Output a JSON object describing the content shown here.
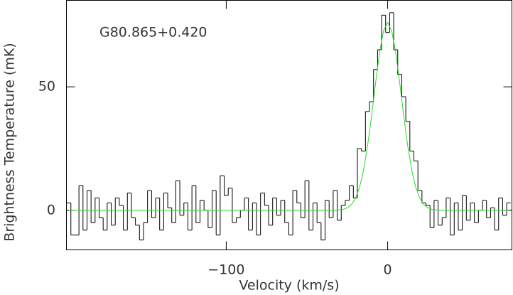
{
  "chart_data": {
    "type": "line",
    "annotation": "G80.865+0.420",
    "xlabel": "Velocity (km/s)",
    "ylabel": "Brightness Temperature (mK)",
    "xlim": [
      -199,
      77
    ],
    "ylim": [
      -16,
      85
    ],
    "xticks": [
      {
        "value": -100,
        "label": "−100"
      },
      0
    ],
    "yticks": [
      0,
      50
    ],
    "x": [
      -197.5,
      -195,
      -192.5,
      -190,
      -187.5,
      -185,
      -182.5,
      -180,
      -177.5,
      -175,
      -172.5,
      -170,
      -167.5,
      -165,
      -162.5,
      -160,
      -157.5,
      -155,
      -152.5,
      -150,
      -147.5,
      -145,
      -142.5,
      -140,
      -137.5,
      -135,
      -132.5,
      -130,
      -127.5,
      -125,
      -122.5,
      -120,
      -117.5,
      -115,
      -112.5,
      -110,
      -107.5,
      -105,
      -102.5,
      -100,
      -97.5,
      -95,
      -92.5,
      -90,
      -87.5,
      -85,
      -82.5,
      -80,
      -77.5,
      -75,
      -72.5,
      -70,
      -67.5,
      -65,
      -62.5,
      -60,
      -57.5,
      -55,
      -52.5,
      -50,
      -47.5,
      -45,
      -42.5,
      -40,
      -37.5,
      -35,
      -32.5,
      -30,
      -27.5,
      -25,
      -22.5,
      -20,
      -17.5,
      -15,
      -12.5,
      -10,
      -7.5,
      -5,
      -2.5,
      0,
      2.5,
      5,
      7.5,
      10,
      12.5,
      15,
      17.5,
      20,
      22.5,
      25,
      27.5,
      30,
      32.5,
      35,
      37.5,
      40,
      42.5,
      45,
      47.5,
      50,
      52.5,
      55,
      57.5,
      60,
      62.5,
      65,
      67.5,
      70,
      72.5,
      75
    ],
    "series": [
      {
        "color": "#000000",
        "drawstyle": "steps-mid",
        "values": [
          3,
          -10,
          -10,
          10,
          -8,
          8,
          -5,
          5,
          -3,
          -8,
          3,
          -6,
          5,
          2,
          -8,
          7,
          -3,
          -6,
          -12,
          -5,
          8,
          -3,
          5,
          -8,
          7,
          1,
          -5,
          12,
          -2,
          3,
          -8,
          10,
          -5,
          4,
          0,
          -7,
          8,
          -10,
          14,
          6,
          9,
          -5,
          -3,
          0,
          5,
          -8,
          3,
          -10,
          7,
          2,
          -6,
          5,
          -2,
          4,
          -5,
          -10,
          8,
          3,
          -3,
          12,
          -8,
          3,
          -5,
          -12,
          4,
          -3,
          8,
          -4,
          2,
          4,
          10,
          5,
          25,
          24,
          40,
          44,
          57,
          65,
          79,
          72,
          80,
          65,
          55,
          46,
          36,
          24,
          20,
          8,
          3,
          2,
          -7,
          4,
          -6,
          -3,
          5,
          -10,
          3,
          -8,
          6,
          -4,
          3,
          -5,
          0,
          4,
          -3,
          1,
          -8,
          5,
          -2,
          3
        ]
      },
      {
        "color": "#22dd22",
        "drawstyle": "default",
        "values": [
          0,
          0,
          0,
          0,
          0,
          0,
          0,
          0,
          0,
          0,
          0,
          0,
          0,
          0,
          0,
          0,
          0,
          0,
          0,
          0,
          0,
          0,
          0,
          0,
          0,
          0,
          0,
          0,
          0,
          0,
          0,
          0,
          0,
          0,
          0,
          0,
          0,
          0,
          0,
          0,
          0,
          0,
          0,
          0,
          0,
          0,
          0,
          0,
          0,
          0,
          0,
          0,
          0,
          0,
          0,
          0,
          0,
          0,
          0,
          0,
          0,
          0,
          0,
          0,
          0,
          0,
          0,
          0.2,
          0.4,
          1.0,
          2.3,
          4.8,
          9.1,
          16.0,
          25.8,
          38.0,
          51.5,
          63.9,
          72.8,
          76,
          72.8,
          63.9,
          51.5,
          38.0,
          25.8,
          16.0,
          9.1,
          4.8,
          2.3,
          1.0,
          0.4,
          0.2,
          0,
          0,
          0,
          0,
          0,
          0,
          0,
          0,
          0,
          0,
          0,
          0,
          0,
          0,
          0,
          0,
          0,
          0
        ]
      }
    ]
  }
}
